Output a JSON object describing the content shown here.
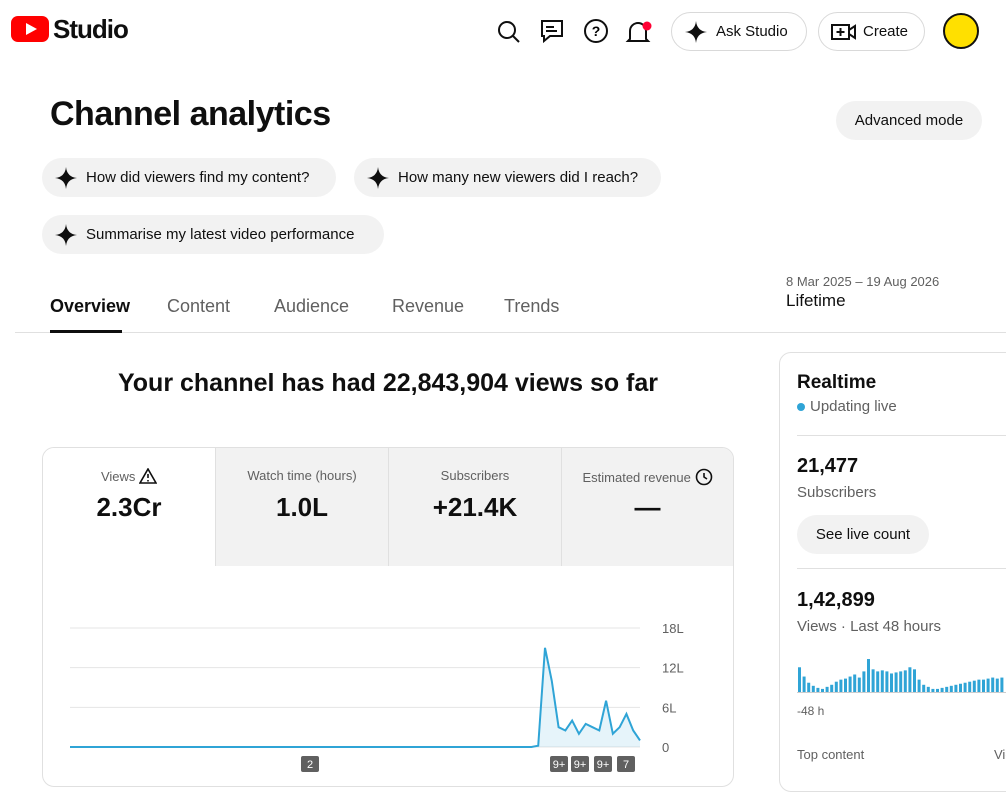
{
  "header": {
    "brand": "Studio",
    "ask": "Ask Studio",
    "create": "Create"
  },
  "page": {
    "title": "Channel analytics",
    "advanced": "Advanced mode",
    "prompts": [
      "How did viewers find my content?",
      "How many new viewers did I reach?",
      "Summarise my latest video performance"
    ]
  },
  "tabs": [
    "Overview",
    "Content",
    "Audience",
    "Revenue",
    "Trends"
  ],
  "date_range": {
    "range": "8 Mar 2025 – 19 Aug 2026",
    "label": "Lifetime"
  },
  "summary": "Your channel has had 22,843,904 views so far",
  "metrics": [
    {
      "label": "Views",
      "value": "2.3Cr"
    },
    {
      "label": "Watch time (hours)",
      "value": "1.0L"
    },
    {
      "label": "Subscribers",
      "value": "+21.4K"
    },
    {
      "label": "Estimated revenue",
      "value": "—"
    }
  ],
  "chart": {
    "type": "line",
    "color": "#2fa4d6",
    "values": [
      0,
      0,
      0,
      0,
      0,
      0,
      0,
      0,
      0,
      0,
      0,
      0,
      0,
      0,
      0,
      0,
      0,
      0,
      0,
      0,
      0,
      0,
      0,
      0,
      0,
      0,
      0,
      0,
      0,
      0,
      0,
      0,
      0,
      0,
      0,
      0,
      0,
      0,
      0,
      0,
      0,
      0,
      0,
      0,
      0,
      0,
      0,
      0,
      0,
      0,
      0,
      0,
      0,
      0,
      0,
      0,
      0,
      0,
      0,
      0,
      0,
      0,
      0,
      0,
      0,
      0,
      0,
      0,
      0,
      20000,
      1500000,
      1000000,
      300000,
      250000,
      400000,
      200000,
      350000,
      300000,
      250000,
      700000,
      200000,
      300000,
      500000,
      250000,
      100000
    ],
    "ylim": [
      0,
      1800000
    ],
    "yticks": [
      {
        "value": 0,
        "label": "0"
      },
      {
        "value": 600000,
        "label": "6L"
      },
      {
        "value": 1200000,
        "label": "12L"
      },
      {
        "value": 1800000,
        "label": "18L"
      }
    ],
    "badges": [
      "2",
      "9+",
      "9+",
      "9+",
      "7"
    ]
  },
  "realtime": {
    "title": "Realtime",
    "status": "Updating live",
    "subscribers": {
      "value": "21,477",
      "label": "Subscribers"
    },
    "button": "See live count",
    "views": {
      "value": "1,42,899",
      "label": "Views · Last 48 hours"
    },
    "bars": [
      2400,
      1500,
      900,
      600,
      400,
      300,
      500,
      700,
      1000,
      1200,
      1300,
      1500,
      1700,
      1400,
      2000,
      3200,
      2200,
      2000,
      2100,
      2000,
      1800,
      1900,
      2000,
      2100,
      2400,
      2200,
      1200,
      700,
      500,
      300,
      300,
      400,
      500,
      600,
      700,
      800,
      900,
      1000,
      1100,
      1200,
      1200,
      1300,
      1400,
      1300,
      1400
    ],
    "bars_max": 3300,
    "axis_start": "-48 h",
    "top_content": "Top content",
    "column": "Views"
  }
}
